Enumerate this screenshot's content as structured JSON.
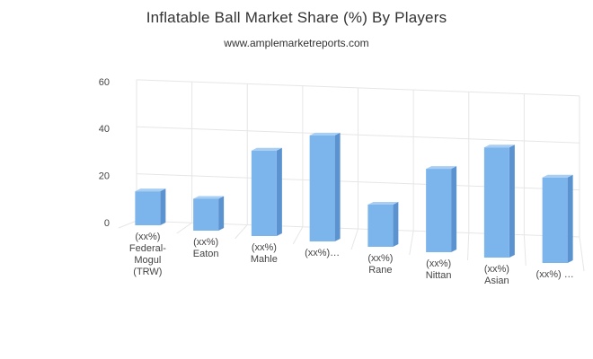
{
  "chart_data": {
    "type": "bar",
    "title": "Inflatable Ball Market Share (%) By Players",
    "subtitle": "www.amplemarketreports.com",
    "categories": [
      "(xx%) Federal-Mogul (TRW)",
      "(xx%) Eaton",
      "(xx%) Mahle",
      "(xx%)…",
      "(xx%) Rane",
      "(xx%) Nittan",
      "(xx%) Asian",
      "(xx%) …"
    ],
    "category_lines": [
      [
        "(xx%)",
        "Federal-",
        "Mogul",
        "(TRW)"
      ],
      [
        "(xx%)",
        "Eaton"
      ],
      [
        "(xx%)",
        "Mahle"
      ],
      [
        "(xx%)…"
      ],
      [
        "(xx%)",
        "Rane"
      ],
      [
        "(xx%)",
        "Nittan"
      ],
      [
        "(xx%)",
        "Asian"
      ],
      [
        "(xx%) …"
      ]
    ],
    "values": [
      13,
      12,
      38,
      48,
      17,
      37,
      50,
      38
    ],
    "ylim": [
      0,
      60
    ],
    "yticks": [
      0,
      20,
      40,
      60
    ],
    "xlabel": "",
    "ylabel": "",
    "grid": true,
    "three_d": true,
    "colors": {
      "bar_front": "#7cb5ec",
      "bar_side": "#5b93d1",
      "bar_top": "#a9cef3",
      "grid": "#e6e6e6"
    }
  }
}
